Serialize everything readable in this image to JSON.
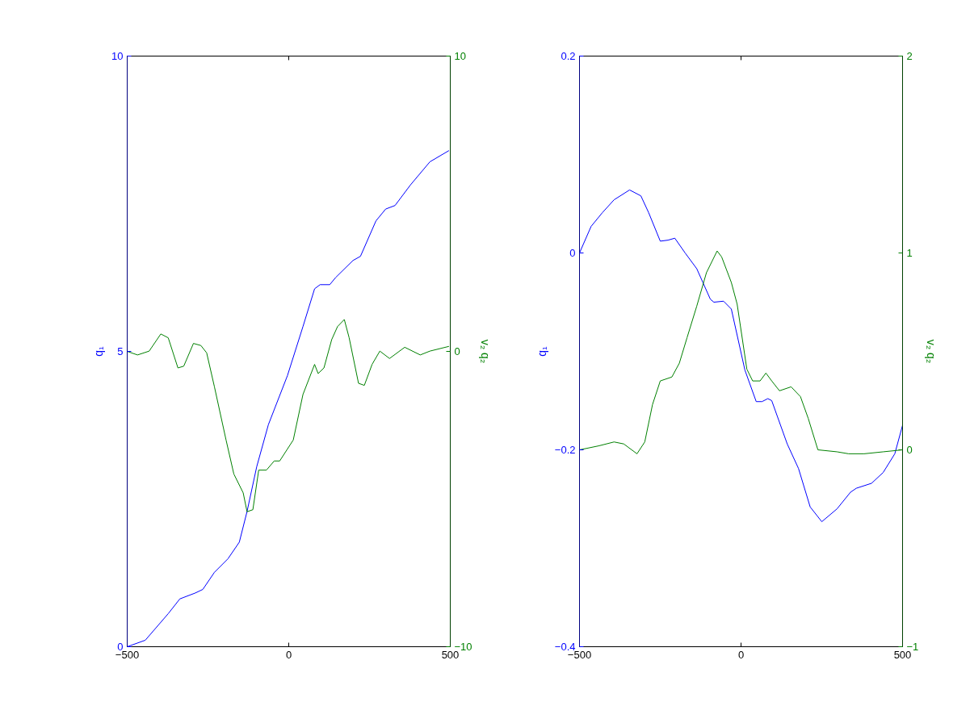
{
  "chart_data": [
    {
      "type": "line",
      "ylabel": "q₁",
      "y2label": "v₂ q₂",
      "xlim": [
        -500,
        500
      ],
      "xticks": [
        -500,
        0,
        500
      ],
      "ylim": [
        0,
        10
      ],
      "yticks": [
        0,
        5,
        10
      ],
      "y2lim": [
        -10,
        10
      ],
      "y2ticks": [
        -10,
        0,
        10
      ],
      "grid": false,
      "series": [
        {
          "color": "#0000ff",
          "x": [
            -500,
            -444,
            -373,
            -337,
            -289,
            -266,
            -230,
            -188,
            -153,
            -129,
            -99,
            -63,
            -4,
            44,
            80,
            97,
            127,
            145,
            199,
            222,
            270,
            300,
            329,
            377,
            437,
            496
          ],
          "values": [
            0,
            0.11,
            0.56,
            0.81,
            0.91,
            0.97,
            1.26,
            1.49,
            1.77,
            2.29,
            3.05,
            3.76,
            4.59,
            5.42,
            6.06,
            6.13,
            6.13,
            6.25,
            6.54,
            6.61,
            7.21,
            7.41,
            7.47,
            7.82,
            8.21,
            8.4
          ]
        },
        {
          "color": "#008000",
          "axis": "y2",
          "x": [
            -500,
            -468,
            -432,
            -396,
            -373,
            -343,
            -325,
            -295,
            -272,
            -254,
            -230,
            -194,
            -170,
            -141,
            -129,
            -111,
            -93,
            -69,
            -45,
            -28,
            14,
            44,
            80,
            91,
            109,
            133,
            151,
            172,
            187,
            216,
            234,
            258,
            282,
            312,
            359,
            407,
            437,
            496
          ],
          "values": [
            0,
            -0.12,
            0.01,
            0.59,
            0.46,
            -0.56,
            -0.5,
            0.27,
            0.2,
            -0.05,
            -1.2,
            -3.0,
            -4.15,
            -4.79,
            -5.43,
            -5.36,
            -4.02,
            -4.02,
            -3.71,
            -3.71,
            -3.0,
            -1.46,
            -0.44,
            -0.75,
            -0.56,
            0.4,
            0.84,
            1.08,
            0.46,
            -1.08,
            -1.15,
            -0.44,
            0.01,
            -0.24,
            0.14,
            -0.12,
            0.01,
            0.17
          ]
        }
      ]
    },
    {
      "type": "line",
      "ylabel": "q₁",
      "y2label": "v₂ q₂",
      "xlim": [
        -500,
        500
      ],
      "xticks": [
        -500,
        0,
        500
      ],
      "ylim": [
        -0.4,
        0.2
      ],
      "yticks": [
        -0.4,
        -0.2,
        0,
        0.2
      ],
      "y2lim": [
        -1,
        2
      ],
      "y2ticks": [
        -1,
        0,
        1,
        2
      ],
      "grid": false,
      "series": [
        {
          "color": "#0000ff",
          "x": [
            -500,
            -464,
            -429,
            -393,
            -345,
            -310,
            -286,
            -250,
            -226,
            -205,
            -173,
            -137,
            -95,
            -84,
            -54,
            -30,
            12,
            47,
            65,
            83,
            95,
            143,
            178,
            214,
            250,
            297,
            339,
            357,
            404,
            440,
            476,
            500
          ],
          "values": [
            0,
            0.027,
            0.041,
            0.054,
            0.064,
            0.058,
            0.041,
            0.012,
            0.013,
            0.015,
            0,
            -0.016,
            -0.047,
            -0.05,
            -0.049,
            -0.057,
            -0.119,
            -0.151,
            -0.151,
            -0.148,
            -0.15,
            -0.194,
            -0.219,
            -0.258,
            -0.273,
            -0.26,
            -0.243,
            -0.239,
            -0.234,
            -0.223,
            -0.204,
            -0.175
          ]
        },
        {
          "color": "#008000",
          "axis": "y2",
          "x": [
            -500,
            -441,
            -393,
            -363,
            -322,
            -298,
            -274,
            -250,
            -214,
            -191,
            -167,
            -137,
            -107,
            -74,
            -60,
            -30,
            -12,
            18,
            36,
            59,
            77,
            95,
            119,
            155,
            184,
            208,
            238,
            297,
            333,
            381,
            440,
            500
          ],
          "values": [
            0,
            0.02,
            0.04,
            0.03,
            -0.02,
            0.04,
            0.23,
            0.35,
            0.37,
            0.44,
            0.57,
            0.73,
            0.9,
            1.01,
            0.98,
            0.85,
            0.74,
            0.41,
            0.35,
            0.35,
            0.39,
            0.35,
            0.3,
            0.32,
            0.27,
            0.16,
            0,
            -0.01,
            -0.02,
            -0.02,
            -0.01,
            0
          ]
        }
      ]
    }
  ]
}
